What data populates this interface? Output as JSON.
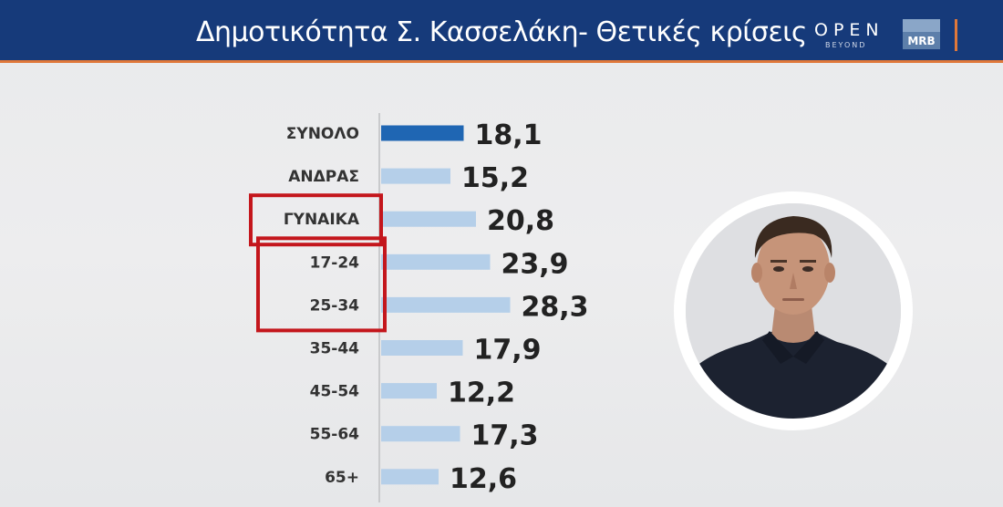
{
  "header": {
    "title": "Δημοτικότητα Σ. Κασσελάκη- Θετικές κρίσεις",
    "brand_open": "OPEN",
    "brand_beyond": "BEYOND",
    "brand_mrb": "MRB"
  },
  "colors": {
    "header_bg": "#163a7a",
    "accent": "#e0783a",
    "bar_total": "#1f66b3",
    "bar_other": "#b5cfe9",
    "highlight_box": "#c4161c"
  },
  "chart_data": {
    "type": "bar",
    "orientation": "horizontal",
    "title": "Δημοτικότητα Σ. Κασσελάκη- Θετικές κρίσεις",
    "categories": [
      "ΣΥΝΟΛΟ",
      "ΑΝΔΡΑΣ",
      "ΓΥΝΑΙΚΑ",
      "17-24",
      "25-34",
      "35-44",
      "45-54",
      "55-64",
      "65+"
    ],
    "values": [
      18.1,
      15.2,
      20.8,
      23.9,
      28.3,
      17.9,
      12.2,
      17.3,
      12.6
    ],
    "value_labels": [
      "18,1",
      "15,2",
      "20,8",
      "23,9",
      "28,3",
      "17,9",
      "12,2",
      "17,3",
      "12,6"
    ],
    "highlighted_categories": [
      [
        "ΓΥΝΑΙΚΑ"
      ],
      [
        "17-24",
        "25-34"
      ]
    ],
    "xlim": [
      0,
      30
    ],
    "grid": false,
    "legend": "none"
  },
  "photo": {
    "icon": "person-portrait-icon"
  }
}
